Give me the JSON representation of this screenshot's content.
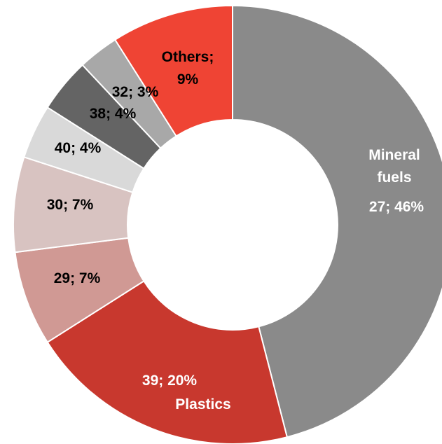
{
  "chart_data": {
    "type": "pie",
    "donut": true,
    "slices": [
      {
        "label": "Mineral fuels",
        "code": "27",
        "value": 46,
        "display": "27; 46%",
        "color": "#8a8a8a",
        "text_color": "#ffffff"
      },
      {
        "label": "Plastics",
        "code": "39",
        "value": 20,
        "display": "39; 20%",
        "color": "#c8382e",
        "text_color": "#ffffff"
      },
      {
        "label": "",
        "code": "29",
        "value": 7,
        "display": "29; 7%",
        "color": "#d09994",
        "text_color": "#000000"
      },
      {
        "label": "",
        "code": "30",
        "value": 7,
        "display": "30; 7%",
        "color": "#d8c3c1",
        "text_color": "#000000"
      },
      {
        "label": "",
        "code": "40",
        "value": 4,
        "display": "40; 4%",
        "color": "#d9d9d9",
        "text_color": "#000000"
      },
      {
        "label": "",
        "code": "38",
        "value": 4,
        "display": "38; 4%",
        "color": "#646464",
        "text_color": "#000000"
      },
      {
        "label": "",
        "code": "32",
        "value": 3,
        "display": "32; 3%",
        "color": "#a8a8a8",
        "text_color": "#000000"
      },
      {
        "label": "Others;",
        "code": "",
        "value": 9,
        "display": "9%",
        "color": "#ef4434",
        "text_color": "#000000"
      }
    ]
  }
}
